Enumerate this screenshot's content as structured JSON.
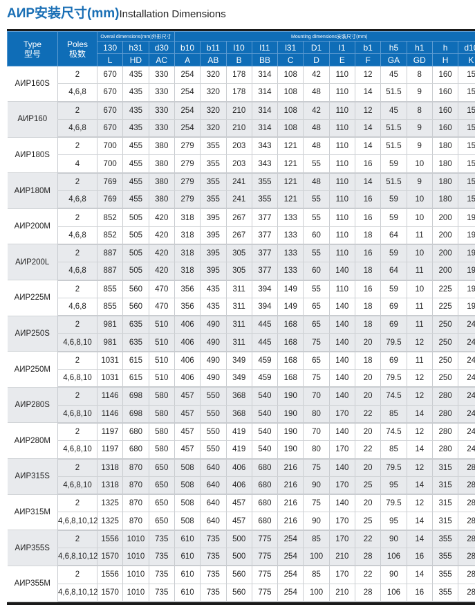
{
  "title": {
    "cn": "АИР安装尺寸(mm)",
    "en": "Installation Dimensions"
  },
  "header": {
    "type": [
      "Type",
      "型号"
    ],
    "poles": [
      "Poles",
      "极数"
    ],
    "overall_group": "Overal dimensions(mm)外形尺寸",
    "mounting_group": "Mounting dimensions安装尺寸(mm)",
    "codes": [
      "130",
      "h31",
      "d30",
      "b10",
      "b11",
      "l10",
      "l11",
      "l31",
      "D1",
      "l1",
      "b1",
      "h5",
      "h1",
      "h",
      "d10"
    ],
    "letters": [
      "L",
      "HD",
      "AC",
      "A",
      "AB",
      "B",
      "BB",
      "C",
      "D",
      "E",
      "F",
      "GA",
      "GD",
      "H",
      "K"
    ]
  },
  "groups": [
    {
      "type": "АИР160S",
      "rows": [
        [
          "2",
          "670",
          "435",
          "330",
          "254",
          "320",
          "178",
          "314",
          "108",
          "42",
          "110",
          "12",
          "45",
          "8",
          "160",
          "15"
        ],
        [
          "4,6,8",
          "670",
          "435",
          "330",
          "254",
          "320",
          "178",
          "314",
          "108",
          "48",
          "110",
          "14",
          "51.5",
          "9",
          "160",
          "15"
        ]
      ]
    },
    {
      "type": "АИР160",
      "rows": [
        [
          "2",
          "670",
          "435",
          "330",
          "254",
          "320",
          "210",
          "314",
          "108",
          "42",
          "110",
          "12",
          "45",
          "8",
          "160",
          "15"
        ],
        [
          "4,6,8",
          "670",
          "435",
          "330",
          "254",
          "320",
          "210",
          "314",
          "108",
          "48",
          "110",
          "14",
          "51.5",
          "9",
          "160",
          "15"
        ]
      ]
    },
    {
      "type": "АИР180S",
      "rows": [
        [
          "2",
          "700",
          "455",
          "380",
          "279",
          "355",
          "203",
          "343",
          "121",
          "48",
          "110",
          "14",
          "51.5",
          "9",
          "180",
          "15"
        ],
        [
          "4",
          "700",
          "455",
          "380",
          "279",
          "355",
          "203",
          "343",
          "121",
          "55",
          "110",
          "16",
          "59",
          "10",
          "180",
          "15"
        ]
      ]
    },
    {
      "type": "АИР180M",
      "rows": [
        [
          "2",
          "769",
          "455",
          "380",
          "279",
          "355",
          "241",
          "355",
          "121",
          "48",
          "110",
          "14",
          "51.5",
          "9",
          "180",
          "15"
        ],
        [
          "4,6,8",
          "769",
          "455",
          "380",
          "279",
          "355",
          "241",
          "355",
          "121",
          "55",
          "110",
          "16",
          "59",
          "10",
          "180",
          "15"
        ]
      ]
    },
    {
      "type": "АИР200M",
      "rows": [
        [
          "2",
          "852",
          "505",
          "420",
          "318",
          "395",
          "267",
          "377",
          "133",
          "55",
          "110",
          "16",
          "59",
          "10",
          "200",
          "19"
        ],
        [
          "4,6,8",
          "852",
          "505",
          "420",
          "318",
          "395",
          "267",
          "377",
          "133",
          "60",
          "110",
          "18",
          "64",
          "11",
          "200",
          "19"
        ]
      ]
    },
    {
      "type": "АИР200L",
      "rows": [
        [
          "2",
          "887",
          "505",
          "420",
          "318",
          "395",
          "305",
          "377",
          "133",
          "55",
          "110",
          "16",
          "59",
          "10",
          "200",
          "19"
        ],
        [
          "4,6,8",
          "887",
          "505",
          "420",
          "318",
          "395",
          "305",
          "377",
          "133",
          "60",
          "140",
          "18",
          "64",
          "11",
          "200",
          "19"
        ]
      ]
    },
    {
      "type": "АИР225M",
      "rows": [
        [
          "2",
          "855",
          "560",
          "470",
          "356",
          "435",
          "311",
          "394",
          "149",
          "55",
          "110",
          "16",
          "59",
          "10",
          "225",
          "19"
        ],
        [
          "4,6,8",
          "855",
          "560",
          "470",
          "356",
          "435",
          "311",
          "394",
          "149",
          "65",
          "140",
          "18",
          "69",
          "11",
          "225",
          "19"
        ]
      ]
    },
    {
      "type": "АИР250S",
      "rows": [
        [
          "2",
          "981",
          "635",
          "510",
          "406",
          "490",
          "311",
          "445",
          "168",
          "65",
          "140",
          "18",
          "69",
          "11",
          "250",
          "24"
        ],
        [
          "4,6,8,10",
          "981",
          "635",
          "510",
          "406",
          "490",
          "311",
          "445",
          "168",
          "75",
          "140",
          "20",
          "79.5",
          "12",
          "250",
          "24"
        ]
      ]
    },
    {
      "type": "АИР250M",
      "rows": [
        [
          "2",
          "1031",
          "615",
          "510",
          "406",
          "490",
          "349",
          "459",
          "168",
          "65",
          "140",
          "18",
          "69",
          "11",
          "250",
          "24"
        ],
        [
          "4,6,8,10",
          "1031",
          "615",
          "510",
          "406",
          "490",
          "349",
          "459",
          "168",
          "75",
          "140",
          "20",
          "79.5",
          "12",
          "250",
          "24"
        ]
      ]
    },
    {
      "type": "АИР280S",
      "rows": [
        [
          "2",
          "1146",
          "698",
          "580",
          "457",
          "550",
          "368",
          "540",
          "190",
          "70",
          "140",
          "20",
          "74.5",
          "12",
          "280",
          "24"
        ],
        [
          "4,6,8,10",
          "1146",
          "698",
          "580",
          "457",
          "550",
          "368",
          "540",
          "190",
          "80",
          "170",
          "22",
          "85",
          "14",
          "280",
          "24"
        ]
      ]
    },
    {
      "type": "АИР280M",
      "rows": [
        [
          "2",
          "1197",
          "680",
          "580",
          "457",
          "550",
          "419",
          "540",
          "190",
          "70",
          "140",
          "20",
          "74.5",
          "12",
          "280",
          "24"
        ],
        [
          "4,6,8,10",
          "1197",
          "680",
          "580",
          "457",
          "550",
          "419",
          "540",
          "190",
          "80",
          "170",
          "22",
          "85",
          "14",
          "280",
          "24"
        ]
      ]
    },
    {
      "type": "АИР315S",
      "rows": [
        [
          "2",
          "1318",
          "870",
          "650",
          "508",
          "640",
          "406",
          "680",
          "216",
          "75",
          "140",
          "20",
          "79.5",
          "12",
          "315",
          "28"
        ],
        [
          "4,6,8,10",
          "1318",
          "870",
          "650",
          "508",
          "640",
          "406",
          "680",
          "216",
          "90",
          "170",
          "25",
          "95",
          "14",
          "315",
          "28"
        ]
      ]
    },
    {
      "type": "АИР315M",
      "rows": [
        [
          "2",
          "1325",
          "870",
          "650",
          "508",
          "640",
          "457",
          "680",
          "216",
          "75",
          "140",
          "20",
          "79.5",
          "12",
          "315",
          "28"
        ],
        [
          "4,6,8,10,12",
          "1325",
          "870",
          "650",
          "508",
          "640",
          "457",
          "680",
          "216",
          "90",
          "170",
          "25",
          "95",
          "14",
          "315",
          "28"
        ]
      ]
    },
    {
      "type": "АИР355S",
      "rows": [
        [
          "2",
          "1556",
          "1010",
          "735",
          "610",
          "735",
          "500",
          "775",
          "254",
          "85",
          "170",
          "22",
          "90",
          "14",
          "355",
          "28"
        ],
        [
          "4,6,8,10,12",
          "1570",
          "1010",
          "735",
          "610",
          "735",
          "500",
          "775",
          "254",
          "100",
          "210",
          "28",
          "106",
          "16",
          "355",
          "28"
        ]
      ]
    },
    {
      "type": "АИР355M",
      "rows": [
        [
          "2",
          "1556",
          "1010",
          "735",
          "610",
          "735",
          "560",
          "775",
          "254",
          "85",
          "170",
          "22",
          "90",
          "14",
          "355",
          "28"
        ],
        [
          "4,6,8,10,12",
          "1570",
          "1010",
          "735",
          "610",
          "735",
          "560",
          "775",
          "254",
          "100",
          "210",
          "28",
          "106",
          "16",
          "355",
          "28"
        ]
      ]
    }
  ],
  "colors": {
    "header_bg": "#0f6db7",
    "title": "#1a6fb5",
    "alt_row": "#e8eaed"
  }
}
